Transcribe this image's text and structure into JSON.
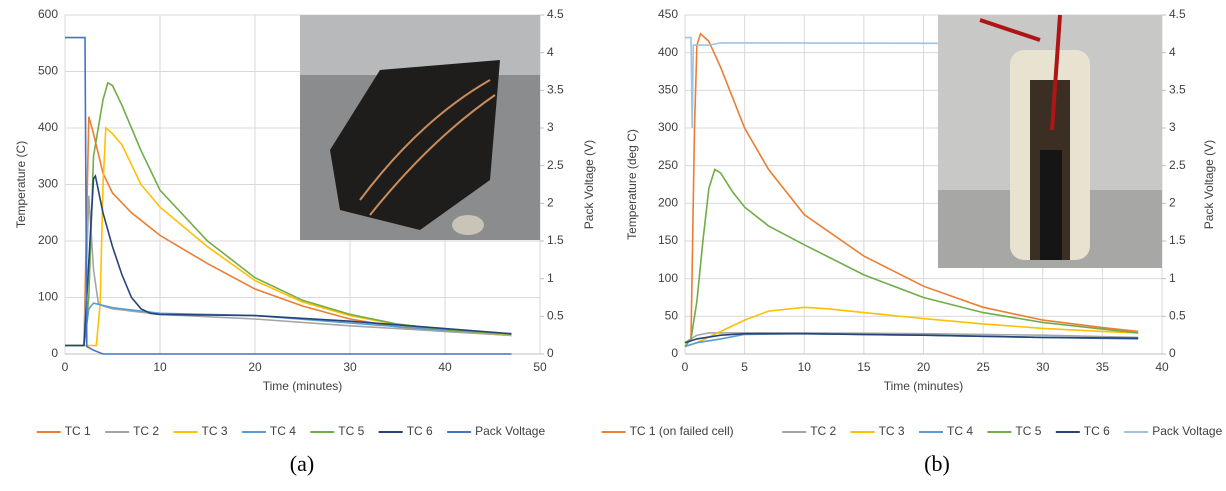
{
  "chart_data": [
    {
      "type": "line",
      "caption": "(a)",
      "x_label": "Time (minutes)",
      "y_label": "Temperature (C)",
      "y2_label": "Pack Voltage (V)",
      "xlim": [
        0,
        50
      ],
      "xticks": [
        0,
        10,
        20,
        30,
        40,
        50
      ],
      "ylim": [
        0,
        600
      ],
      "yticks": [
        0,
        100,
        200,
        300,
        400,
        500,
        600
      ],
      "y2lim": [
        0,
        4.5
      ],
      "y2ticks": [
        0,
        0.5,
        1,
        1.5,
        2,
        2.5,
        3,
        3.5,
        4,
        4.5
      ],
      "grid": true,
      "legend": "bottom",
      "series": [
        {
          "name": "TC 1",
          "color": "#ED7D31",
          "x": [
            0,
            2,
            2.5,
            3,
            4,
            5,
            7,
            10,
            15,
            20,
            25,
            30,
            35,
            40,
            47
          ],
          "values": [
            15,
            15,
            420,
            390,
            320,
            285,
            250,
            210,
            160,
            115,
            85,
            62,
            48,
            40,
            33
          ]
        },
        {
          "name": "TC 2",
          "color": "#A5A5A5",
          "x": [
            0,
            2,
            2.5,
            3,
            3.5,
            4,
            5,
            10,
            20,
            30,
            40,
            47
          ],
          "values": [
            15,
            15,
            280,
            150,
            90,
            85,
            80,
            70,
            62,
            50,
            40,
            33
          ]
        },
        {
          "name": "TC 3",
          "color": "#FFC000",
          "x": [
            0,
            3.3,
            3.7,
            4,
            4.3,
            5,
            6,
            8,
            10,
            15,
            20,
            25,
            30,
            35,
            40,
            47
          ],
          "values": [
            15,
            15,
            90,
            300,
            400,
            390,
            370,
            300,
            260,
            190,
            130,
            92,
            68,
            52,
            42,
            34
          ]
        },
        {
          "name": "TC 4",
          "color": "#5B9BD5",
          "x": [
            0,
            2,
            2.5,
            3,
            5,
            10,
            20,
            30,
            40,
            47
          ],
          "values": [
            15,
            15,
            80,
            90,
            82,
            72,
            68,
            55,
            42,
            35
          ]
        },
        {
          "name": "TC 5",
          "color": "#70AD47",
          "x": [
            0,
            2,
            2.5,
            3,
            4,
            4.5,
            5,
            6,
            8,
            10,
            15,
            20,
            25,
            30,
            35,
            40,
            47
          ],
          "values": [
            15,
            15,
            100,
            350,
            450,
            480,
            475,
            440,
            360,
            290,
            200,
            135,
            95,
            70,
            53,
            43,
            35
          ]
        },
        {
          "name": "TC 6",
          "color": "#264478",
          "x": [
            0,
            2,
            2.3,
            3,
            3.2,
            4,
            5,
            6,
            7,
            8,
            9,
            10,
            20,
            30,
            40,
            47
          ],
          "values": [
            15,
            15,
            100,
            310,
            315,
            250,
            190,
            140,
            100,
            80,
            72,
            70,
            68,
            58,
            45,
            36
          ]
        },
        {
          "name": "Pack Voltage",
          "color": "#4472C4",
          "axis": "y2",
          "x": [
            0,
            2.1,
            2.3,
            3,
            4,
            47
          ],
          "values": [
            4.2,
            4.2,
            0.1,
            0.05,
            0,
            0
          ]
        }
      ]
    },
    {
      "type": "line",
      "caption": "(b)",
      "x_label": "Time (minutes)",
      "y_label": "Temperature (deg C)",
      "y2_label": "Pack Voltage (V)",
      "xlim": [
        0,
        40
      ],
      "xticks": [
        0,
        5,
        10,
        15,
        20,
        25,
        30,
        35,
        40
      ],
      "ylim": [
        0,
        450
      ],
      "yticks": [
        0,
        50,
        100,
        150,
        200,
        250,
        300,
        350,
        400,
        450
      ],
      "y2lim": [
        0,
        4.5
      ],
      "y2ticks": [
        0,
        0.5,
        1,
        1.5,
        2,
        2.5,
        3,
        3.5,
        4,
        4.5
      ],
      "grid": true,
      "legend": "bottom",
      "series": [
        {
          "name": "TC 1 (on failed cell)",
          "color": "#ED7D31",
          "x": [
            0,
            0.5,
            0.8,
            1,
            1.3,
            2,
            3,
            5,
            7,
            10,
            15,
            20,
            25,
            30,
            35,
            38
          ],
          "values": [
            15,
            20,
            300,
            410,
            425,
            415,
            380,
            300,
            245,
            185,
            130,
            90,
            62,
            45,
            35,
            30
          ]
        },
        {
          "name": "TC 2",
          "color": "#A5A5A5",
          "x": [
            0,
            0.5,
            1,
            2,
            5,
            10,
            20,
            30,
            38
          ],
          "values": [
            15,
            20,
            25,
            28,
            28,
            28,
            27,
            25,
            22
          ]
        },
        {
          "name": "TC 3",
          "color": "#FFC000",
          "x": [
            0,
            1,
            3,
            5,
            7,
            10,
            12,
            15,
            20,
            25,
            30,
            35,
            38
          ],
          "values": [
            10,
            15,
            30,
            45,
            57,
            62,
            60,
            55,
            47,
            40,
            34,
            30,
            28
          ]
        },
        {
          "name": "TC 4",
          "color": "#5B9BD5",
          "x": [
            0,
            1,
            3,
            5,
            10,
            20,
            30,
            38
          ],
          "values": [
            10,
            15,
            20,
            26,
            27,
            25,
            22,
            20
          ]
        },
        {
          "name": "TC 5",
          "color": "#70AD47",
          "x": [
            0,
            0.5,
            1,
            1.5,
            2,
            2.5,
            3,
            4,
            5,
            7,
            10,
            15,
            20,
            25,
            30,
            35,
            38
          ],
          "values": [
            10,
            20,
            70,
            150,
            220,
            245,
            240,
            215,
            195,
            170,
            145,
            105,
            75,
            55,
            42,
            33,
            28
          ]
        },
        {
          "name": "TC 6",
          "color": "#264478",
          "x": [
            0,
            1,
            3,
            5,
            10,
            20,
            30,
            38
          ],
          "values": [
            15,
            20,
            25,
            27,
            27,
            25,
            22,
            21
          ]
        },
        {
          "name": "Pack Voltage",
          "color": "#9DC3E6",
          "axis": "y2",
          "x": [
            0,
            0.5,
            0.6,
            0.7,
            1,
            2,
            3,
            38
          ],
          "values": [
            4.2,
            4.2,
            3.0,
            4.1,
            4.1,
            4.1,
            4.13,
            4.12
          ]
        }
      ]
    }
  ]
}
